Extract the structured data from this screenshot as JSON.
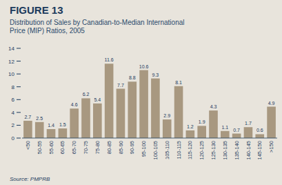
{
  "chart_data": {
    "type": "bar",
    "title": "FIGURE 13",
    "subtitle": "Distribution of Sales by Canadian-to-Median International\nPrice (MIP) Ratios, 2005",
    "source": "Source: PMPRB",
    "categories": [
      "<50",
      "50-55",
      "55-60",
      "60-65",
      "65-70",
      "70-75",
      "75-80",
      "80-85",
      "85-90",
      "90-95",
      "95-100",
      "100-105",
      "105-110",
      "110-115",
      "115-120",
      "120-125",
      "125-130",
      "130-135",
      "135-140",
      "140-145",
      "145-150",
      ">150"
    ],
    "values": [
      2.7,
      2.5,
      1.4,
      1.5,
      4.6,
      6.2,
      5.4,
      11.6,
      7.7,
      8.8,
      10.6,
      9.3,
      2.9,
      8.1,
      1.2,
      1.9,
      4.3,
      1.1,
      0.7,
      1.7,
      0.6,
      4.9
    ],
    "color": "#a89880",
    "ylim": [
      0,
      14
    ],
    "yticks": [
      0,
      2,
      4,
      6,
      8,
      10,
      12,
      14
    ],
    "grid": false,
    "data_labels": true
  }
}
